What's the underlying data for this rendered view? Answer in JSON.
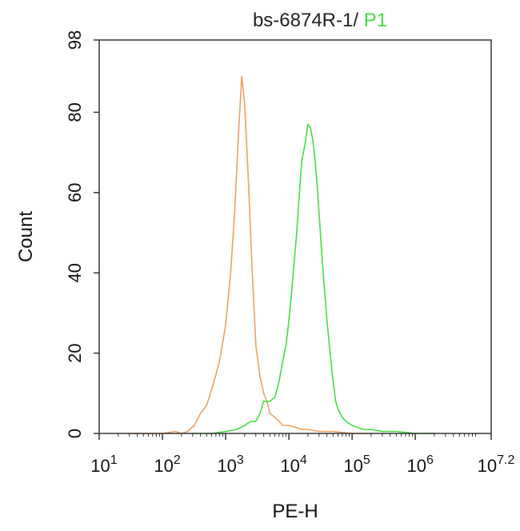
{
  "chart_data": {
    "type": "line",
    "title": {
      "prefix": "bs-6874R-1/ ",
      "highlight": "P1"
    },
    "xlabel": "PE-H",
    "ylabel": "Count",
    "x_scale": "log10",
    "xlim": [
      10,
      15848932
    ],
    "ylim": [
      0,
      98
    ],
    "x_ticks": [
      {
        "value": 10,
        "base": "10",
        "exp": "1"
      },
      {
        "value": 100,
        "base": "10",
        "exp": "2"
      },
      {
        "value": 1000,
        "base": "10",
        "exp": "3"
      },
      {
        "value": 10000,
        "base": "10",
        "exp": "4"
      },
      {
        "value": 100000,
        "base": "10",
        "exp": "5"
      },
      {
        "value": 1000000,
        "base": "10",
        "exp": "6"
      },
      {
        "value": 15848932,
        "base": "10",
        "exp": "7.2"
      }
    ],
    "y_ticks": [
      0,
      20,
      40,
      60,
      80,
      98
    ],
    "series": [
      {
        "color": "#f0a060",
        "x": [
          30,
          60,
          100,
          160,
          200,
          250,
          320,
          400,
          500,
          630,
          800,
          1000,
          1200,
          1400,
          1600,
          1800,
          2000,
          2300,
          2600,
          3000,
          3500,
          4000,
          4500,
          5000,
          6000,
          7000,
          8000,
          10000,
          13000,
          16000,
          20000,
          30000,
          50000,
          100000,
          200000
        ],
        "y": [
          0,
          0,
          0,
          0.5,
          0,
          0.5,
          2,
          5,
          7,
          12,
          18,
          27,
          40,
          56,
          75,
          89,
          82,
          62,
          42,
          22,
          14,
          10,
          8,
          5,
          4,
          3,
          2,
          2,
          1.5,
          1,
          1,
          0.5,
          0.5,
          0,
          0
        ]
      },
      {
        "color": "#44dd44",
        "x": [
          300,
          600,
          1000,
          1500,
          2000,
          2500,
          3000,
          3500,
          4000,
          5000,
          6000,
          7000,
          8000,
          9000,
          10000,
          11000,
          12000,
          13000,
          14000,
          15000,
          16000,
          18000,
          20000,
          22000,
          24000,
          26000,
          28000,
          30000,
          33000,
          36000,
          40000,
          45000,
          50000,
          55000,
          60000,
          70000,
          80000,
          100000,
          150000,
          200000,
          300000,
          500000,
          1000000,
          2000000
        ],
        "y": [
          0,
          0,
          0.5,
          1,
          2,
          3,
          3,
          5,
          8,
          8,
          9,
          13,
          18,
          22,
          28,
          35,
          42,
          48,
          55,
          62,
          68,
          72,
          77,
          76,
          73,
          68,
          62,
          55,
          45,
          37,
          28,
          20,
          13,
          8,
          6,
          4,
          3,
          2,
          1,
          1,
          0.5,
          0.5,
          0,
          0
        ]
      }
    ]
  }
}
